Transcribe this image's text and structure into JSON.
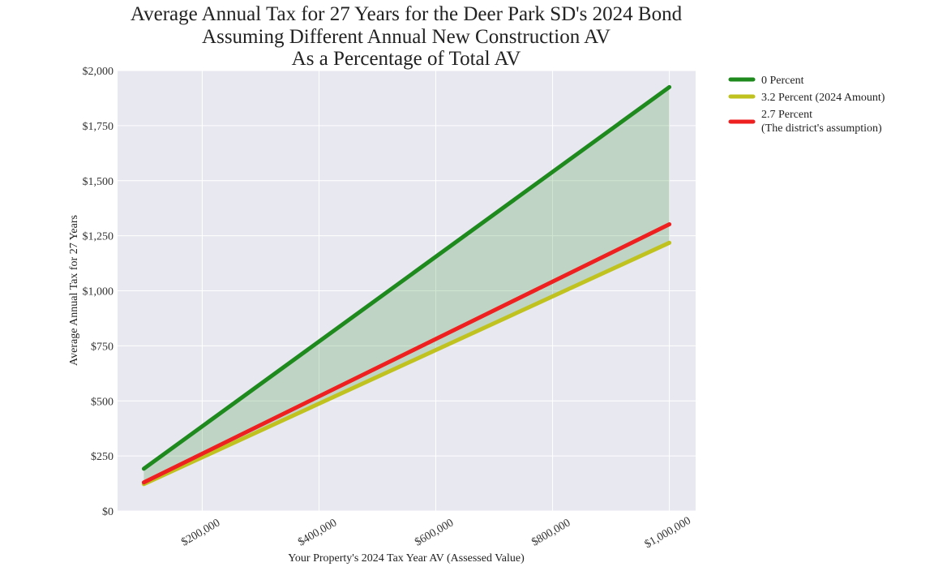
{
  "chart_data": {
    "type": "line",
    "title_lines": [
      "Average Annual Tax for 27 Years for the Deer Park SD's 2024 Bond",
      "Assuming Different Annual New Construction AV",
      "As a Percentage of Total AV"
    ],
    "xlabel": "Your Property's 2024 Tax Year AV (Assessed Value)",
    "ylabel": "Average Annual Tax for 27 Years",
    "xlim": [
      55000,
      1045000
    ],
    "ylim": [
      0,
      2000
    ],
    "x_ticks": [
      200000,
      400000,
      600000,
      800000,
      1000000
    ],
    "x_tick_labels": [
      "$200,000",
      "$400,000",
      "$600,000",
      "$800,000",
      "$1,000,000"
    ],
    "y_ticks": [
      0,
      250,
      500,
      750,
      1000,
      1250,
      1500,
      1750,
      2000
    ],
    "y_tick_labels": [
      "$0",
      "$250",
      "$500",
      "$750",
      "$1,000",
      "$1,250",
      "$1,500",
      "$1,750",
      "$2,000"
    ],
    "grid": true,
    "legend_position": "outside-top-right",
    "fill_between": {
      "upper": "0 Percent",
      "lower": "3.2 Percent (2024 Amount)",
      "color": "#2e8b2e"
    },
    "series": [
      {
        "name": "0 Percent",
        "legend_lines": [
          "0 Percent"
        ],
        "color": "#1e8a1e",
        "x": [
          100000,
          1000000
        ],
        "y": [
          192,
          1925
        ]
      },
      {
        "name": "3.2 Percent (2024 Amount)",
        "legend_lines": [
          "3.2 Percent (2024 Amount)"
        ],
        "color": "#bfc21f",
        "x": [
          100000,
          1000000
        ],
        "y": [
          122,
          1218
        ]
      },
      {
        "name": "2.7 Percent (The district's assumption)",
        "legend_lines": [
          "2.7 Percent",
          "(The district's assumption)"
        ],
        "color": "#ee2020",
        "x": [
          100000,
          1000000
        ],
        "y": [
          130,
          1302
        ]
      }
    ]
  },
  "colors": {
    "plot_background": "#e8e8f0",
    "grid": "#ffffff"
  }
}
